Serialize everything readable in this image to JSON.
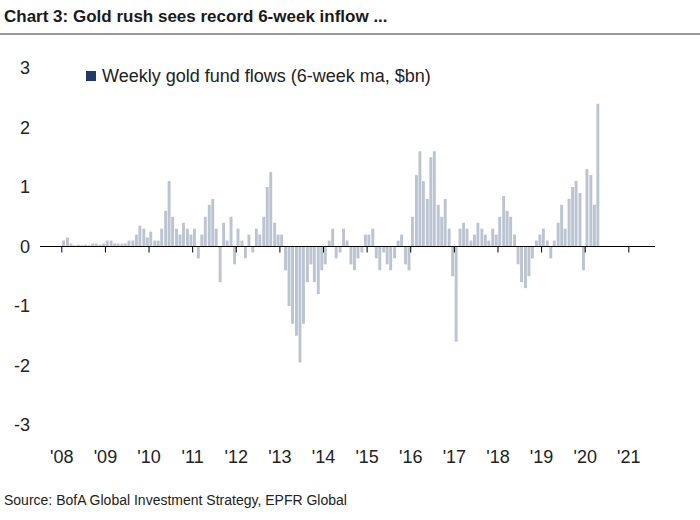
{
  "chart_data": {
    "type": "bar",
    "title": "Chart 3: Gold rush sees record 6-week inflow ...",
    "source": "Source: BofA Global Investment Strategy, EPFR Global",
    "x": [
      2008.04,
      2008.13,
      2008.21,
      2008.29,
      2008.38,
      2008.46,
      2008.54,
      2008.63,
      2008.71,
      2008.79,
      2008.88,
      2008.96,
      2009.04,
      2009.13,
      2009.21,
      2009.29,
      2009.38,
      2009.46,
      2009.54,
      2009.63,
      2009.71,
      2009.79,
      2009.88,
      2009.96,
      2010.04,
      2010.13,
      2010.21,
      2010.29,
      2010.38,
      2010.46,
      2010.54,
      2010.63,
      2010.71,
      2010.79,
      2010.88,
      2010.96,
      2011.04,
      2011.13,
      2011.21,
      2011.29,
      2011.38,
      2011.46,
      2011.54,
      2011.63,
      2011.71,
      2011.79,
      2011.88,
      2011.96,
      2012.04,
      2012.13,
      2012.21,
      2012.29,
      2012.38,
      2012.46,
      2012.54,
      2012.63,
      2012.71,
      2012.79,
      2012.88,
      2012.96,
      2013.04,
      2013.13,
      2013.21,
      2013.29,
      2013.38,
      2013.46,
      2013.54,
      2013.63,
      2013.71,
      2013.79,
      2013.88,
      2013.96,
      2014.04,
      2014.13,
      2014.21,
      2014.29,
      2014.38,
      2014.46,
      2014.54,
      2014.63,
      2014.71,
      2014.79,
      2014.88,
      2014.96,
      2015.04,
      2015.13,
      2015.21,
      2015.29,
      2015.38,
      2015.46,
      2015.54,
      2015.63,
      2015.71,
      2015.79,
      2015.88,
      2015.96,
      2016.04,
      2016.13,
      2016.21,
      2016.29,
      2016.38,
      2016.46,
      2016.54,
      2016.63,
      2016.71,
      2016.79,
      2016.88,
      2016.96,
      2017.04,
      2017.13,
      2017.21,
      2017.29,
      2017.38,
      2017.46,
      2017.54,
      2017.63,
      2017.71,
      2017.79,
      2017.88,
      2017.96,
      2018.04,
      2018.13,
      2018.21,
      2018.29,
      2018.38,
      2018.46,
      2018.54,
      2018.63,
      2018.71,
      2018.79,
      2018.88,
      2018.96,
      2019.04,
      2019.13,
      2019.21,
      2019.29,
      2019.38,
      2019.46,
      2019.54,
      2019.63,
      2019.71,
      2019.79,
      2019.88,
      2019.96,
      2020.04,
      2020.13,
      2020.21,
      2020.29
    ],
    "series": [
      {
        "name": "Weekly gold fund flows (6-week ma, $bn)",
        "color": "#1f3a68",
        "values": [
          0.1,
          0.15,
          0.05,
          0.02,
          0.03,
          0.02,
          0.03,
          0.02,
          0.05,
          0.05,
          0.03,
          0.05,
          0.1,
          0.1,
          0.05,
          0.05,
          0.05,
          0.05,
          0.1,
          0.1,
          0.2,
          0.35,
          0.3,
          0.15,
          0.25,
          0.1,
          0.1,
          0.3,
          0.6,
          1.1,
          0.5,
          0.3,
          0.2,
          0.4,
          0.3,
          0.2,
          0.3,
          -0.2,
          0.2,
          0.5,
          0.7,
          0.8,
          0.3,
          -0.6,
          0.4,
          0.1,
          0.5,
          -0.3,
          0.3,
          0.1,
          -0.2,
          0.2,
          -0.1,
          0.3,
          0.2,
          0.5,
          1.0,
          1.25,
          0.4,
          0.2,
          0.2,
          -0.4,
          -1.0,
          -1.3,
          -1.5,
          -1.95,
          -1.3,
          -0.6,
          -0.3,
          -0.6,
          -0.8,
          -0.4,
          -0.3,
          0.1,
          0.3,
          -0.2,
          -0.1,
          0.3,
          0.1,
          -0.3,
          -0.4,
          -0.2,
          -0.1,
          0.2,
          0.2,
          0.3,
          -0.2,
          -0.4,
          -0.1,
          -0.3,
          -0.4,
          -0.2,
          0.1,
          0.2,
          -0.3,
          -0.4,
          0.5,
          1.2,
          1.6,
          1.1,
          0.8,
          1.5,
          1.6,
          0.7,
          0.5,
          0.8,
          0.3,
          -0.5,
          -1.6,
          0.3,
          0.4,
          0.3,
          0.1,
          0.2,
          0.4,
          0.3,
          0.2,
          0.1,
          0.3,
          0.2,
          0.5,
          0.85,
          0.6,
          0.5,
          0.2,
          -0.3,
          -0.6,
          -0.7,
          -0.5,
          -0.2,
          0.1,
          0.2,
          0.3,
          0.1,
          -0.2,
          0.1,
          0.4,
          0.7,
          0.3,
          0.8,
          1.0,
          1.1,
          0.9,
          -0.4,
          1.3,
          1.2,
          0.7,
          2.4
        ]
      }
    ],
    "xlim": [
      2007.5,
      2021.6
    ],
    "xticks": [
      {
        "value": 2008,
        "label": "'08"
      },
      {
        "value": 2009,
        "label": "'09"
      },
      {
        "value": 2010,
        "label": "'10"
      },
      {
        "value": 2011,
        "label": "'11"
      },
      {
        "value": 2012,
        "label": "'12"
      },
      {
        "value": 2013,
        "label": "'13"
      },
      {
        "value": 2014,
        "label": "'14"
      },
      {
        "value": 2015,
        "label": "'15"
      },
      {
        "value": 2016,
        "label": "'16"
      },
      {
        "value": 2017,
        "label": "'17"
      },
      {
        "value": 2018,
        "label": "'18"
      },
      {
        "value": 2019,
        "label": "'19"
      },
      {
        "value": 2020,
        "label": "'20"
      },
      {
        "value": 2021,
        "label": "'21"
      }
    ],
    "ylim": [
      -3,
      3
    ],
    "yticks": [
      -3,
      -2,
      -1,
      0,
      1,
      2,
      3
    ],
    "grid": false,
    "legend": "top-left"
  }
}
